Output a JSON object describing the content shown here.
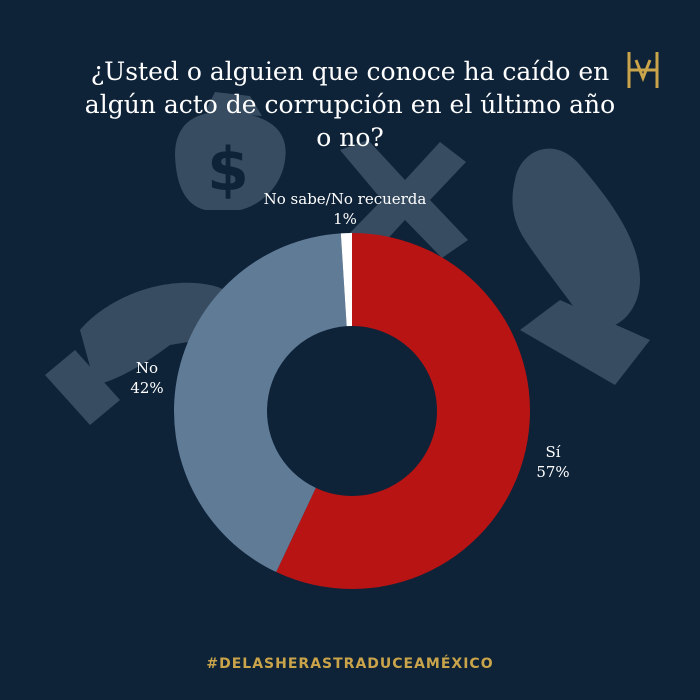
{
  "title": "¿Usted o alguien que conoce ha caído en algún acto de corrupción en el último año o no?",
  "footer": "#DELASHERASTRADUCEAMÉXICO",
  "colors": {
    "background": "#0e2238",
    "si": "#b81414",
    "no": "#5f7b96",
    "nosabe": "#ffffff",
    "illustration": "#3c5166",
    "gold": "#c9a44a"
  },
  "icons": [
    "money-bag-icon",
    "cross-icon",
    "hand-icon",
    "brand-logo-icon"
  ],
  "chart_data": {
    "type": "pie",
    "variant": "donut",
    "categories": [
      "Sí",
      "No",
      "No sabe/No recuerda"
    ],
    "values": [
      57,
      42,
      1
    ],
    "labels": {
      "si": {
        "name": "Sí",
        "value": "57%"
      },
      "no": {
        "name": "No",
        "value": "42%"
      },
      "nosabe": {
        "name": "No sabe/No recuerda",
        "value": "1%"
      }
    }
  }
}
